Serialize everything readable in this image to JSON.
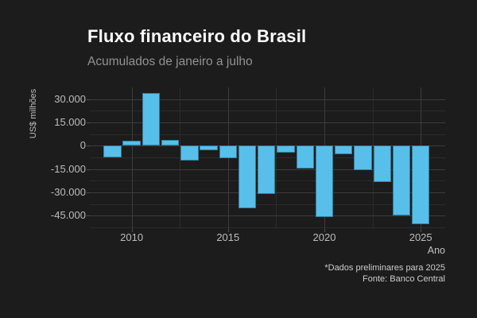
{
  "header": {
    "title": "Fluxo financeiro do Brasil",
    "subtitle": "Acumulados de janeiro a julho"
  },
  "footer": {
    "note": "*Dados preliminares para 2025",
    "source": "Fonte: Banco Central"
  },
  "colors": {
    "background": "#1c1c1d",
    "bar": "#57bfea",
    "grid_major": "#3c3c3c",
    "grid_minor": "#2b2b2c",
    "title_text": "#ffffff",
    "subtitle_text": "#929292",
    "axis_text": "#bdbdbd",
    "caption_text": "#cdcdcd"
  },
  "chart_data": {
    "type": "bar",
    "title": "Fluxo financeiro do Brasil",
    "subtitle": "Acumulados de janeiro a julho",
    "xlabel": "Ano",
    "ylabel": "US$ milhões",
    "x": [
      2009,
      2010,
      2011,
      2012,
      2013,
      2014,
      2015,
      2016,
      2017,
      2018,
      2019,
      2020,
      2021,
      2022,
      2023,
      2024,
      2025
    ],
    "values": [
      -7300,
      3400,
      33800,
      3900,
      -9400,
      -2900,
      -8100,
      -40300,
      -31000,
      -4300,
      -14700,
      -45900,
      -5600,
      -15800,
      -23300,
      -44900,
      -50500
    ],
    "units": "US$ milhões",
    "ylim": [
      -53500,
      37500
    ],
    "grid": "on",
    "legend": "none",
    "bar_color": "#57bfea",
    "y_major_ticks": [
      {
        "value": 30000,
        "label": "30.000"
      },
      {
        "value": 15000,
        "label": "15.000"
      },
      {
        "value": 0,
        "label": "0"
      },
      {
        "value": -15000,
        "label": "-15.000"
      },
      {
        "value": -30000,
        "label": "-30.000"
      },
      {
        "value": -45000,
        "label": "-45.000"
      }
    ],
    "y_minor_ticks": [
      22500,
      7500,
      -7500,
      -22500,
      -37500,
      -52500
    ],
    "x_major_ticks": [
      {
        "value": 2010,
        "label": "2010"
      },
      {
        "value": 2015,
        "label": "2015"
      },
      {
        "value": 2020,
        "label": "2020"
      },
      {
        "value": 2025,
        "label": "2025"
      }
    ],
    "x_minor_ticks": [
      2012.5,
      2017.5,
      2022.5
    ],
    "caption": [
      "*Dados preliminares para 2025",
      "Fonte: Banco Central"
    ]
  }
}
